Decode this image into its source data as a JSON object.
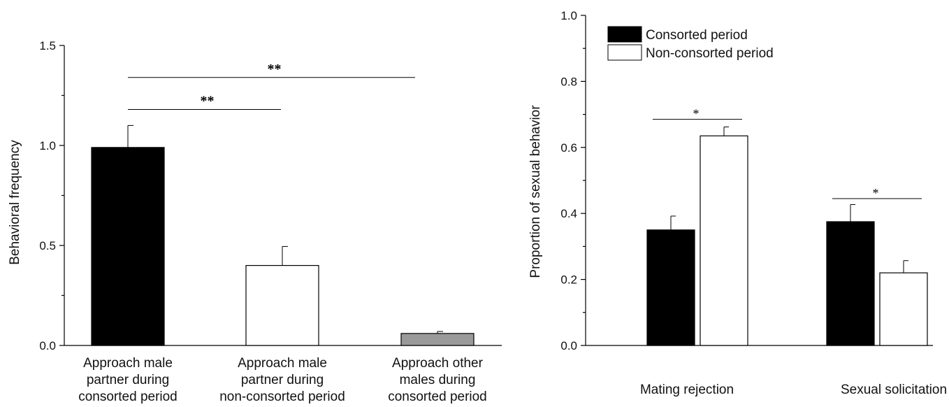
{
  "chart_data": [
    {
      "type": "bar",
      "ylabel": "Behavioral frequency",
      "ylim": [
        0,
        1.5
      ],
      "yticks": [
        "0.0",
        "0.5",
        "1.0",
        "1.5"
      ],
      "categories": [
        [
          "Approach male",
          "partner during",
          "consorted period"
        ],
        [
          "Approach male",
          "partner during",
          "non-consorted period"
        ],
        [
          "Approach other",
          "males during",
          "consorted period"
        ]
      ],
      "values": [
        0.99,
        0.4,
        0.06
      ],
      "errors": [
        0.11,
        0.095,
        0.01
      ],
      "colors": [
        "#000000",
        "#ffffff",
        "#9a9a9a"
      ],
      "significance": [
        {
          "from": 0,
          "to": 1,
          "label": "**",
          "y": 1.18
        },
        {
          "from": 0,
          "to": 2,
          "label": "**",
          "y": 1.34
        }
      ]
    },
    {
      "type": "bar",
      "ylabel": "Proportion of sexual behavior",
      "ylim": [
        0,
        1.0
      ],
      "yticks": [
        "0.0",
        "0.2",
        "0.4",
        "0.6",
        "0.8",
        "1.0"
      ],
      "categories": [
        "Mating rejection",
        "Sexual solicitation"
      ],
      "legend": {
        "position": "top-left",
        "entries": [
          "Consorted period",
          "Non-consorted period"
        ]
      },
      "series": [
        {
          "name": "Consorted period",
          "color": "#000000",
          "values": [
            0.35,
            0.375
          ],
          "errors": [
            0.042,
            0.052
          ]
        },
        {
          "name": "Non-consorted period",
          "color": "#ffffff",
          "values": [
            0.635,
            0.22
          ],
          "errors": [
            0.027,
            0.037
          ]
        }
      ],
      "significance": [
        {
          "category": 0,
          "label": "*",
          "y": 0.685
        },
        {
          "category": 1,
          "label": "*",
          "y": 0.445
        }
      ]
    }
  ]
}
